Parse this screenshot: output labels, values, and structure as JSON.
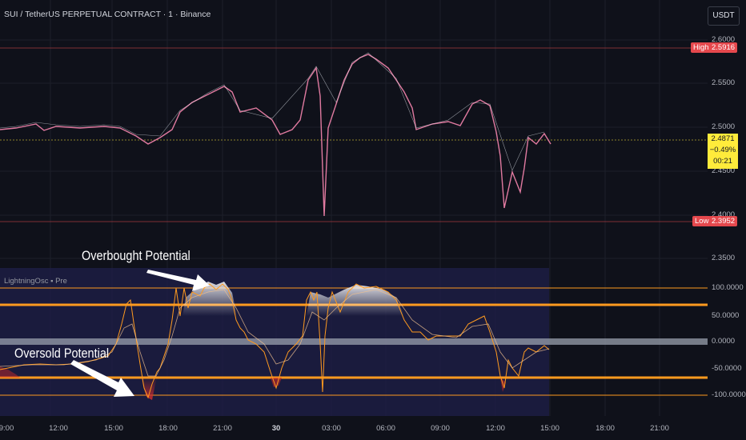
{
  "header": {
    "title": "SUI / TetherUS PERPETUAL CONTRACT · 1 · Binance",
    "currency": "USDT"
  },
  "price_axis": {
    "ticks": [
      "2.6000",
      "2.5500",
      "2.5000",
      "2.4500",
      "2.4000",
      "2.3500"
    ],
    "high_label": "High",
    "high_value": "2.5916",
    "low_label": "Low",
    "low_value": "2.3952",
    "current_price": "2.4871",
    "change_pct": "−0.49%",
    "countdown": "00:21"
  },
  "indicator": {
    "label": "LightningOsc ▪ Pre",
    "ticks": [
      "100.0000",
      "50.0000",
      "0.0000",
      "-50.0000",
      "-100.0000"
    ]
  },
  "time_axis": {
    "ticks": [
      "9:00",
      "12:00",
      "15:00",
      "18:00",
      "21:00",
      "30",
      "03:00",
      "06:00",
      "09:00",
      "12:00",
      "15:00",
      "18:00",
      "21:00"
    ]
  },
  "annotations": {
    "overbought": "Overbought Potential",
    "oversold": "Oversold Potential"
  },
  "colors": {
    "background": "#0f111a",
    "candle_up": "#e9eef5",
    "candle_down": "#e56a8a",
    "level_line": "#ff9a1f",
    "high_low_tag": "#e5484d",
    "current_price_tag": "#ffeb3b",
    "oscillator_band": "#1f1f4a"
  }
}
